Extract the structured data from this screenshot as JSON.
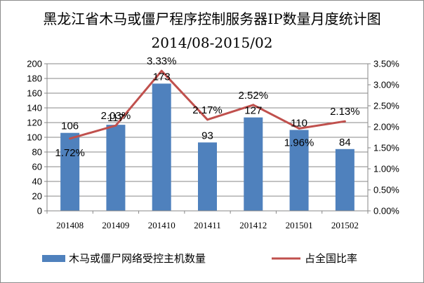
{
  "chart_data": {
    "type": "bar",
    "title": "黑龙江省木马或僵尸程序控制服务器IP数量月度统计图",
    "subtitle": "2014/08-2015/02",
    "categories": [
      "201408",
      "201409",
      "201410",
      "201411",
      "201412",
      "201501",
      "201502"
    ],
    "series": [
      {
        "name": "木马或僵尸网络受控主机数量",
        "type": "bar",
        "axis": "left",
        "color": "#4f81bd",
        "values": [
          106,
          117,
          173,
          93,
          127,
          110,
          84
        ],
        "labels": [
          "106",
          "117",
          "173",
          "93",
          "127",
          "110",
          "84"
        ]
      },
      {
        "name": "占全国比率",
        "type": "line",
        "axis": "right",
        "color": "#c0504d",
        "values": [
          1.72,
          2.03,
          3.33,
          2.17,
          2.52,
          1.96,
          2.13
        ],
        "labels": [
          "1.72%",
          "2.03%",
          "3.33%",
          "2.17%",
          "2.52%",
          "1.96%",
          "2.13%"
        ]
      }
    ],
    "ylim_left": [
      0,
      200
    ],
    "yticks_left": [
      "0",
      "20",
      "40",
      "60",
      "80",
      "100",
      "120",
      "140",
      "160",
      "180",
      "200"
    ],
    "ylim_right": [
      0,
      3.5
    ],
    "yticks_right": [
      "0.00%",
      "0.50%",
      "1.00%",
      "1.50%",
      "2.00%",
      "2.50%",
      "3.00%",
      "3.50%"
    ],
    "grid": true,
    "legend_position": "bottom"
  }
}
